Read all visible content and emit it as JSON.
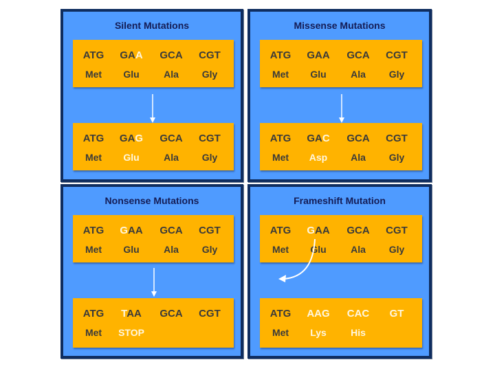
{
  "panels": {
    "silent": {
      "title": "Silent Mutations",
      "top": {
        "codons": [
          {
            "pre": "ATG",
            "hl": "",
            "post": ""
          },
          {
            "pre": "GA",
            "hl": "A",
            "post": ""
          },
          {
            "pre": "GCA",
            "hl": "",
            "post": ""
          },
          {
            "pre": "CGT",
            "hl": "",
            "post": ""
          }
        ],
        "aa": [
          {
            "text": "Met",
            "hl": false
          },
          {
            "text": "Glu",
            "hl": false
          },
          {
            "text": "Ala",
            "hl": false
          },
          {
            "text": "Gly",
            "hl": false
          }
        ]
      },
      "bottom": {
        "codons": [
          {
            "pre": "ATG",
            "hl": "",
            "post": ""
          },
          {
            "pre": "GA",
            "hl": "G",
            "post": ""
          },
          {
            "pre": "GCA",
            "hl": "",
            "post": ""
          },
          {
            "pre": "CGT",
            "hl": "",
            "post": ""
          }
        ],
        "aa": [
          {
            "text": "Met",
            "hl": false
          },
          {
            "text": "Glu",
            "hl": true
          },
          {
            "text": "Ala",
            "hl": false
          },
          {
            "text": "Gly",
            "hl": false
          }
        ]
      }
    },
    "missense": {
      "title": "Missense Mutations",
      "top": {
        "codons": [
          {
            "pre": "ATG",
            "hl": "",
            "post": ""
          },
          {
            "pre": "GAA",
            "hl": "",
            "post": ""
          },
          {
            "pre": "GCA",
            "hl": "",
            "post": ""
          },
          {
            "pre": "CGT",
            "hl": "",
            "post": ""
          }
        ],
        "aa": [
          {
            "text": "Met",
            "hl": false
          },
          {
            "text": "Glu",
            "hl": false
          },
          {
            "text": "Ala",
            "hl": false
          },
          {
            "text": "Gly",
            "hl": false
          }
        ]
      },
      "bottom": {
        "codons": [
          {
            "pre": "ATG",
            "hl": "",
            "post": ""
          },
          {
            "pre": "GA",
            "hl": "C",
            "post": ""
          },
          {
            "pre": "GCA",
            "hl": "",
            "post": ""
          },
          {
            "pre": "CGT",
            "hl": "",
            "post": ""
          }
        ],
        "aa": [
          {
            "text": "Met",
            "hl": false
          },
          {
            "text": "Asp",
            "hl": true
          },
          {
            "text": "Ala",
            "hl": false
          },
          {
            "text": "Gly",
            "hl": false
          }
        ]
      }
    },
    "nonsense": {
      "title": "Nonsense Mutations",
      "top": {
        "codons": [
          {
            "pre": "ATG",
            "hl": "",
            "post": ""
          },
          {
            "pre": "",
            "hl": "G",
            "post": "AA"
          },
          {
            "pre": "GCA",
            "hl": "",
            "post": ""
          },
          {
            "pre": "CGT",
            "hl": "",
            "post": ""
          }
        ],
        "aa": [
          {
            "text": "Met",
            "hl": false
          },
          {
            "text": "Glu",
            "hl": false
          },
          {
            "text": "Ala",
            "hl": false
          },
          {
            "text": "Gly",
            "hl": false
          }
        ]
      },
      "bottom": {
        "codons": [
          {
            "pre": "ATG",
            "hl": "",
            "post": ""
          },
          {
            "pre": "",
            "hl": "T",
            "post": "AA"
          },
          {
            "pre": "GCA",
            "hl": "",
            "post": ""
          },
          {
            "pre": "CGT",
            "hl": "",
            "post": ""
          }
        ],
        "aa": [
          {
            "text": "Met",
            "hl": false
          },
          {
            "text": "STOP",
            "hl": true
          },
          {
            "text": "",
            "hl": false
          },
          {
            "text": "",
            "hl": false
          }
        ]
      }
    },
    "frameshift": {
      "title": "Frameshift Mutation",
      "top": {
        "codons": [
          {
            "pre": "ATG",
            "hl": "",
            "post": ""
          },
          {
            "pre": "",
            "hl": "G",
            "post": "AA"
          },
          {
            "pre": "GCA",
            "hl": "",
            "post": ""
          },
          {
            "pre": "CGT",
            "hl": "",
            "post": ""
          }
        ],
        "aa": [
          {
            "text": "Met",
            "hl": false
          },
          {
            "text": "Glu",
            "hl": false
          },
          {
            "text": "Ala",
            "hl": false
          },
          {
            "text": "Gly",
            "hl": false
          }
        ]
      },
      "bottom": {
        "codons": [
          {
            "pre": "ATG",
            "hl": "",
            "post": ""
          },
          {
            "pre": "",
            "hl": "AAG",
            "post": ""
          },
          {
            "pre": "",
            "hl": "CAC",
            "post": ""
          },
          {
            "pre": "",
            "hl": "GT",
            "post": ""
          }
        ],
        "aa": [
          {
            "text": "Met",
            "hl": false
          },
          {
            "text": "Lys",
            "hl": true
          },
          {
            "text": "His",
            "hl": true
          },
          {
            "text": "",
            "hl": false
          }
        ]
      }
    }
  },
  "colors": {
    "panel": "#4f9bff",
    "panel_border": "#0f2d5f",
    "box": "#ffb300",
    "title_text": "#141c55",
    "base_text": "#3a3a3a",
    "highlight_text": "#fff7e0"
  }
}
